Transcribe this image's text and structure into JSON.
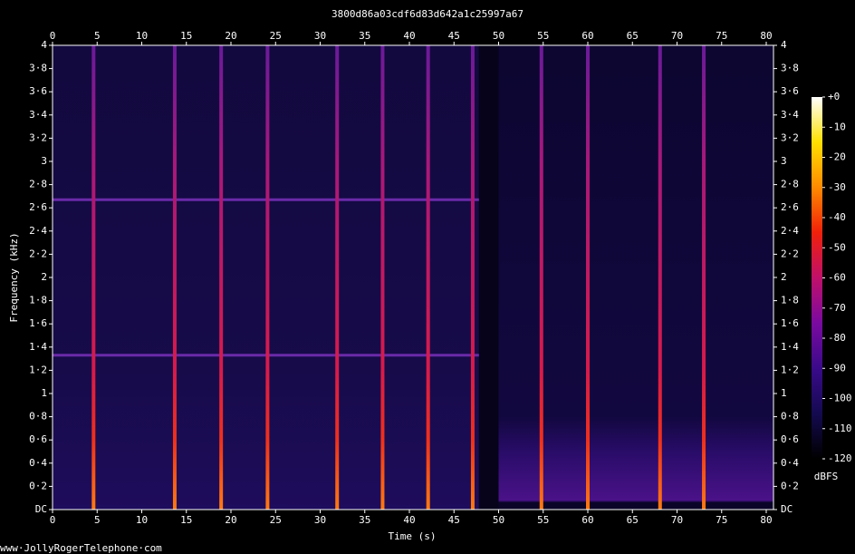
{
  "chart_data": {
    "type": "spectrogram",
    "title": "3800d86a03cdf6d83d642a1c25997a67",
    "x_label": "Time (s)",
    "y_label": "Frequency (kHz)",
    "xlim": [
      0,
      80.8
    ],
    "xticks": [
      0,
      5,
      10,
      15,
      20,
      25,
      30,
      35,
      40,
      45,
      50,
      55,
      60,
      65,
      70,
      75,
      80
    ],
    "ylim": [
      0,
      4
    ],
    "yticks": [
      {
        "value": 0,
        "label": "DC"
      },
      {
        "value": 0.2,
        "label": "0·2"
      },
      {
        "value": 0.4,
        "label": "0·4"
      },
      {
        "value": 0.6,
        "label": "0·6"
      },
      {
        "value": 0.8,
        "label": "0·8"
      },
      1,
      {
        "value": 1.2,
        "label": "1·2"
      },
      {
        "value": 1.4,
        "label": "1·4"
      },
      {
        "value": 1.6,
        "label": "1·6"
      },
      {
        "value": 1.8,
        "label": "1·8"
      },
      2,
      {
        "value": 2.2,
        "label": "2·2"
      },
      {
        "value": 2.4,
        "label": "2·4"
      },
      {
        "value": 2.6,
        "label": "2·6"
      },
      {
        "value": 2.8,
        "label": "2·8"
      },
      3,
      {
        "value": 3.2,
        "label": "3·2"
      },
      {
        "value": 3.4,
        "label": "3·4"
      },
      {
        "value": 3.6,
        "label": "3·6"
      },
      {
        "value": 3.8,
        "label": "3·8"
      },
      4
    ],
    "clicks": {
      "x": [
        4.6,
        13.7,
        18.9,
        24.1,
        31.9,
        37.0,
        42.1,
        47.1,
        54.8,
        60.0,
        68.1,
        73.0
      ]
    },
    "tones": {
      "y": [
        1.33,
        2.67
      ],
      "x_end": 47.8
    },
    "silence": [
      47.8,
      50
    ],
    "colorbar": {
      "label": "dBFS",
      "lim": [
        -120,
        0
      ],
      "ticks": [
        {
          "value": 0,
          "label": "+0"
        },
        -10,
        -20,
        -30,
        -40,
        -50,
        -60,
        -70,
        -80,
        -90,
        -100,
        -110,
        -120
      ],
      "colors": [
        "#000000",
        "#140a50",
        "#3a0a8a",
        "#7a0aa0",
        "#c0106a",
        "#f0200a",
        "#ff8a00",
        "#ffe000",
        "#ffffff"
      ]
    }
  },
  "footer": "www·JollyRogerTelephone·com"
}
